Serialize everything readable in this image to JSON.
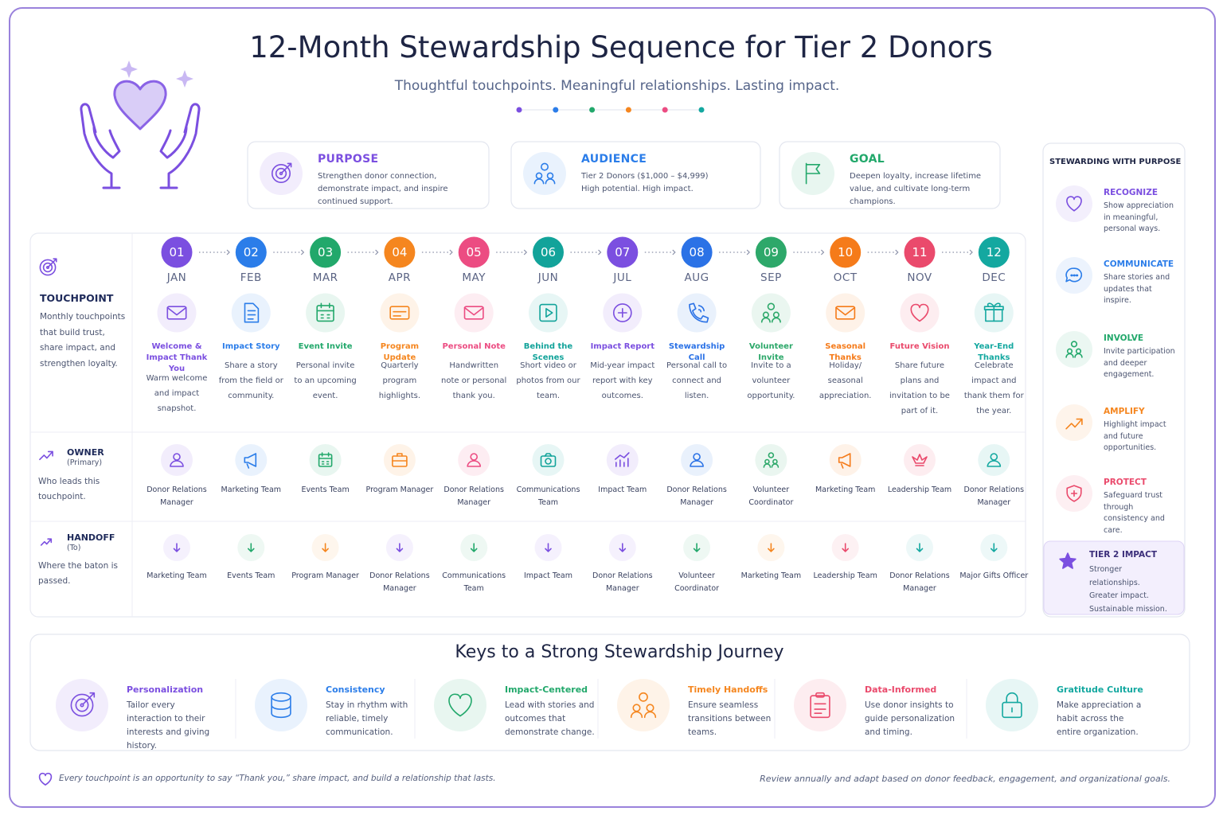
{
  "header": {
    "title": "12-Month Stewardship Sequence for Tier 2 Donors",
    "subtitle": "Thoughtful touchpoints. Meaningful relationships. Lasting impact."
  },
  "info_cards": [
    {
      "title": "PURPOSE",
      "text": "Strengthen donor connection, demonstrate impact, and inspire continued support."
    },
    {
      "title": "AUDIENCE",
      "text": "Tier 2 Donors ($1,000 – $4,999) High potential. High impact."
    },
    {
      "title": "GOAL",
      "text": "Deepen loyalty, increase lifetime value, and cultivate long-term champions."
    }
  ],
  "timeline": {
    "touchpoint_label": {
      "title": "TOUCHPOINT",
      "text": "Monthly touchpoints that build trust, share impact, and strengthen loyalty."
    },
    "owner_label": {
      "title": "OWNER",
      "note": "(Primary)",
      "text": "Who leads this touchpoint."
    },
    "handoff_label": {
      "title": "HANDOFF",
      "note": "(To)",
      "text": "Where the baton is passed."
    },
    "months": [
      {
        "number": "01",
        "month": "JAN",
        "touchpoint": "Welcome & Impact Thank You",
        "description": "Warm welcome and impact snapshot.",
        "owner": "Donor Relations Manager",
        "handoff": "Marketing Team"
      },
      {
        "number": "02",
        "month": "FEB",
        "touchpoint": "Impact Story",
        "description": "Share a story from the field or community.",
        "owner": "Marketing Team",
        "handoff": "Events Team"
      },
      {
        "number": "03",
        "month": "MAR",
        "touchpoint": "Event Invite",
        "description": "Personal invite to an upcoming event.",
        "owner": "Events Team",
        "handoff": "Program Manager"
      },
      {
        "number": "04",
        "month": "APR",
        "touchpoint": "Program Update",
        "description": "Quarterly program highlights.",
        "owner": "Program Manager",
        "handoff": "Donor Relations Manager"
      },
      {
        "number": "05",
        "month": "MAY",
        "touchpoint": "Personal Note",
        "description": "Handwritten note or personal thank you.",
        "owner": "Donor Relations Manager",
        "handoff": "Communications Team"
      },
      {
        "number": "06",
        "month": "JUN",
        "touchpoint": "Behind the Scenes",
        "description": "Short video or photos from our team.",
        "owner": "Communications Team",
        "handoff": "Impact Team"
      },
      {
        "number": "07",
        "month": "JUL",
        "touchpoint": "Impact Report",
        "description": "Mid-year impact report with key outcomes.",
        "owner": "Impact Team",
        "handoff": "Donor Relations Manager"
      },
      {
        "number": "08",
        "month": "AUG",
        "touchpoint": "Stewardship Call",
        "description": "Personal call to connect and listen.",
        "owner": "Donor Relations Manager",
        "handoff": "Volunteer Coordinator"
      },
      {
        "number": "09",
        "month": "SEP",
        "touchpoint": "Volunteer Invite",
        "description": "Invite to a volunteer opportunity.",
        "owner": "Volunteer Coordinator",
        "handoff": "Marketing Team"
      },
      {
        "number": "10",
        "month": "OCT",
        "touchpoint": "Seasonal Thanks",
        "description": "Holiday/ seasonal appreciation.",
        "owner": "Marketing Team",
        "handoff": "Leadership Team"
      },
      {
        "number": "11",
        "month": "NOV",
        "touchpoint": "Future Vision",
        "description": "Share future plans and invitation to be part of it.",
        "owner": "Leadership Team",
        "handoff": "Donor Relations Manager"
      },
      {
        "number": "12",
        "month": "DEC",
        "touchpoint": "Year-End Thanks",
        "description": "Celebrate impact and thank them for the year.",
        "owner": "Donor Relations Manager",
        "handoff": "Major Gifts Officer"
      }
    ]
  },
  "sidebar": {
    "title": "STEWARDING WITH PURPOSE",
    "items": [
      {
        "title": "RECOGNIZE",
        "text": "Show appreciation in meaningful, personal ways."
      },
      {
        "title": "COMMUNICATE",
        "text": "Share stories and updates that inspire."
      },
      {
        "title": "INVOLVE",
        "text": "Invite participation and deeper engagement."
      },
      {
        "title": "AMPLIFY",
        "text": "Highlight impact and future opportunities."
      },
      {
        "title": "PROTECT",
        "text": "Safeguard trust through consistency and care."
      }
    ],
    "impact": {
      "title": "TIER 2 IMPACT",
      "text": "Stronger relationships. Greater impact. Sustainable mission."
    }
  },
  "keys": {
    "title": "Keys to a Strong Stewardship Journey",
    "items": [
      {
        "title": "Personalization",
        "text": "Tailor every interaction to their interests and giving history."
      },
      {
        "title": "Consistency",
        "text": "Stay in rhythm with reliable, timely communication."
      },
      {
        "title": "Impact-Centered",
        "text": "Lead with stories and outcomes that demonstrate change."
      },
      {
        "title": "Timely Handoffs",
        "text": "Ensure seamless transitions between teams."
      },
      {
        "title": "Data-Informed",
        "text": "Use donor insights to guide personalization and timing."
      },
      {
        "title": "Gratitude Culture",
        "text": "Make appreciation a habit across the entire organization."
      }
    ]
  },
  "footer": {
    "left": "Every touchpoint is an opportunity to say “Thank you,” share impact, and build a relationship that lasts.",
    "right": "Review annually and adapt based on donor feedback, engagement, and organizational goals."
  }
}
